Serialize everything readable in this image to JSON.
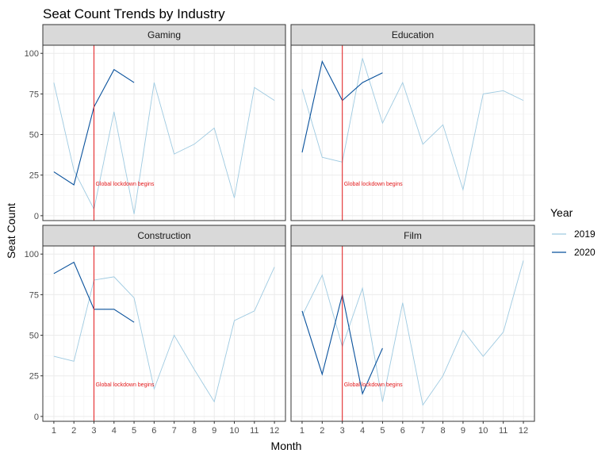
{
  "chart_data": {
    "type": "line",
    "title": "Seat Count Trends by Industry",
    "xlabel": "Month",
    "ylabel": "Seat Count",
    "x": [
      1,
      2,
      3,
      4,
      5,
      6,
      7,
      8,
      9,
      10,
      11,
      12
    ],
    "x_ticks": [
      "1",
      "2",
      "3",
      "4",
      "5",
      "6",
      "7",
      "8",
      "9",
      "10",
      "11",
      "12"
    ],
    "y_ticks": [
      "0",
      "25",
      "50",
      "75",
      "100"
    ],
    "xlim": [
      0.45,
      12.55
    ],
    "ylim": [
      -3,
      105
    ],
    "grid": true,
    "legend": {
      "title": "Year",
      "position": "right",
      "entries": [
        {
          "label": "2019",
          "color": "#9ecae1"
        },
        {
          "label": "2020",
          "color": "#08519c"
        }
      ]
    },
    "reference_line": {
      "x": 3,
      "color": "#e31a1c",
      "label": "Global lockdown begins",
      "label_y": 20
    },
    "panels": [
      {
        "name": "Gaming",
        "series": [
          {
            "name": "2019",
            "x": [
              1,
              2,
              3,
              4,
              5,
              6,
              7,
              8,
              9,
              10,
              11,
              12
            ],
            "values": [
              82,
              28,
              4,
              64,
              1,
              82,
              38,
              44,
              54,
              11,
              79,
              71
            ]
          },
          {
            "name": "2020",
            "x": [
              1,
              2,
              3,
              4,
              5
            ],
            "values": [
              27,
              19,
              67,
              90,
              82
            ]
          }
        ]
      },
      {
        "name": "Education",
        "series": [
          {
            "name": "2019",
            "x": [
              1,
              2,
              3,
              4,
              5,
              6,
              7,
              8,
              9,
              10,
              11,
              12
            ],
            "values": [
              78,
              36,
              33,
              97,
              57,
              82,
              44,
              56,
              16,
              75,
              77,
              71
            ]
          },
          {
            "name": "2020",
            "x": [
              1,
              2,
              3,
              4,
              5
            ],
            "values": [
              39,
              95,
              71,
              82,
              88
            ]
          }
        ]
      },
      {
        "name": "Construction",
        "series": [
          {
            "name": "2019",
            "x": [
              1,
              2,
              3,
              4,
              5,
              6,
              7,
              8,
              9,
              10,
              11,
              12
            ],
            "values": [
              37,
              34,
              84,
              86,
              73,
              17,
              50,
              29,
              9,
              59,
              65,
              92
            ]
          },
          {
            "name": "2020",
            "x": [
              1,
              2,
              3,
              4,
              5
            ],
            "values": [
              88,
              95,
              66,
              66,
              58
            ]
          }
        ]
      },
      {
        "name": "Film",
        "series": [
          {
            "name": "2019",
            "x": [
              1,
              2,
              3,
              4,
              5,
              6,
              7,
              8,
              9,
              10,
              11,
              12
            ],
            "values": [
              62,
              87,
              43,
              79,
              9,
              70,
              7,
              25,
              53,
              37,
              52,
              96
            ]
          },
          {
            "name": "2020",
            "x": [
              1,
              2,
              3,
              4,
              5
            ],
            "values": [
              65,
              26,
              75,
              14,
              42
            ]
          }
        ]
      }
    ]
  }
}
